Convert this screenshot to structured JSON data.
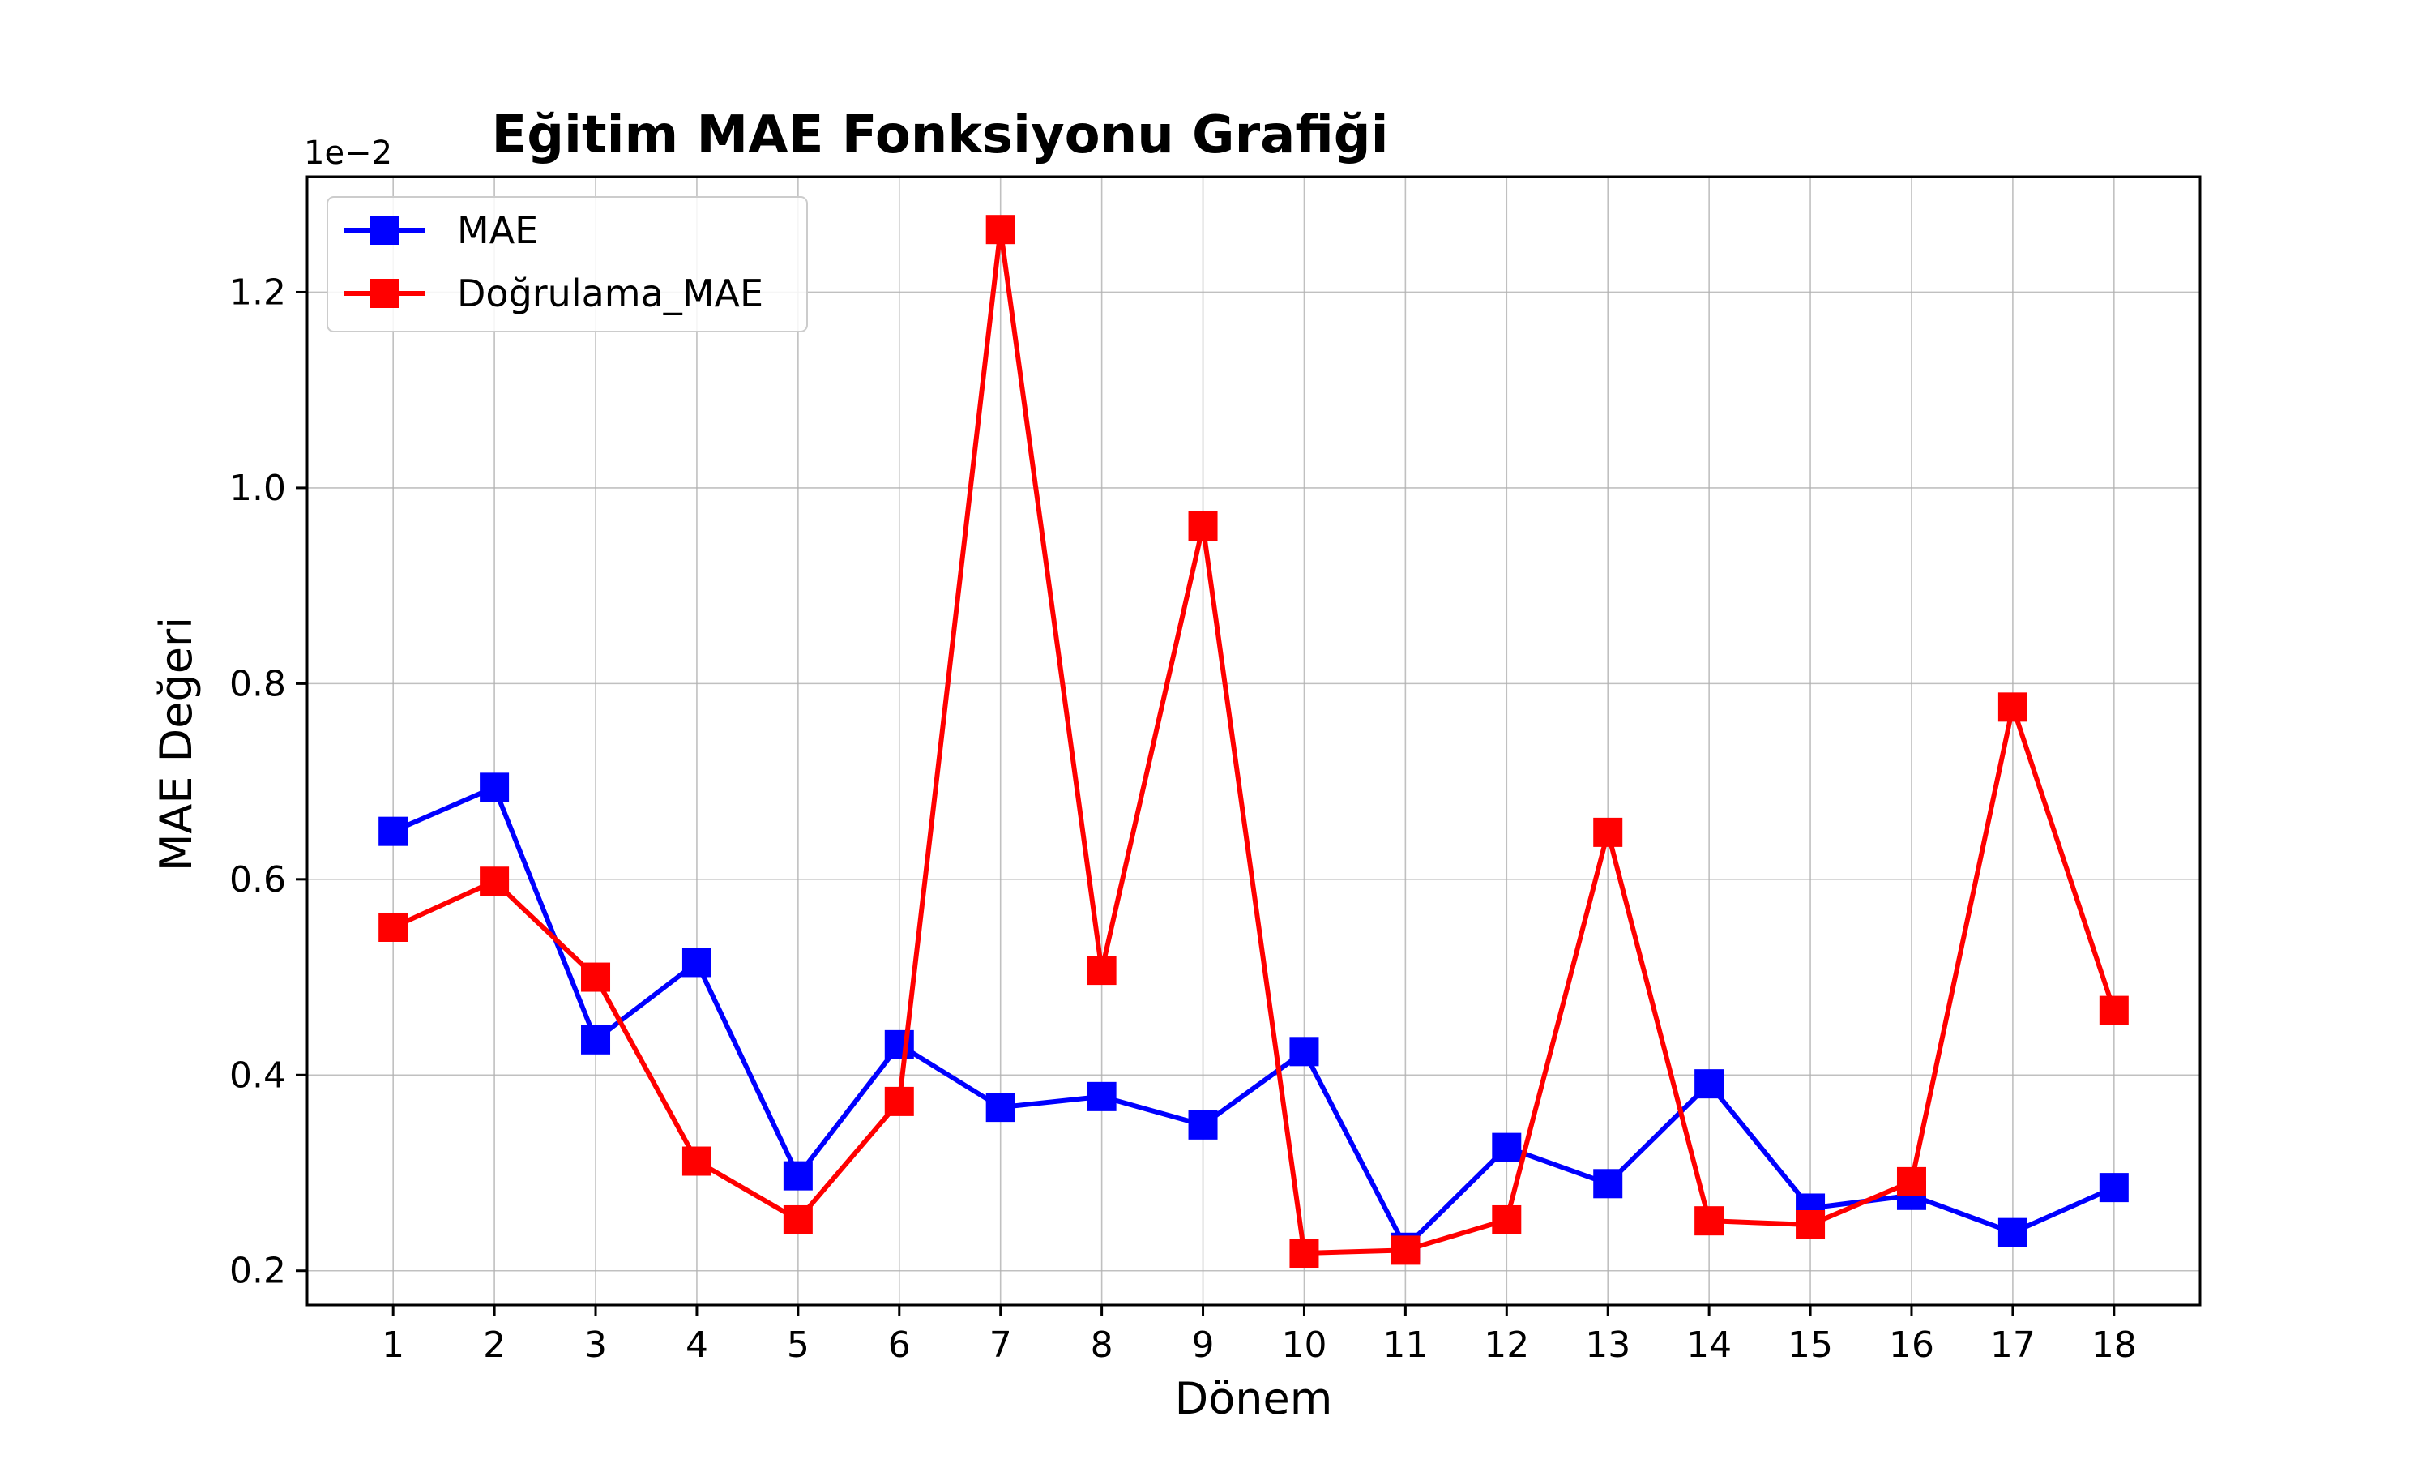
{
  "chart_data": {
    "type": "line",
    "title": "Eğitim MAE Fonksiyonu Grafiği",
    "xlabel": "Dönem",
    "ylabel": "MAE Değeri",
    "y_offset_label": "1e−2",
    "x": [
      1,
      2,
      3,
      4,
      5,
      6,
      7,
      8,
      9,
      10,
      11,
      12,
      13,
      14,
      15,
      16,
      17,
      18
    ],
    "xlim": [
      0.15,
      18.85
    ],
    "ylim": [
      0.165,
      1.318
    ],
    "yticks": [
      0.2,
      0.4,
      0.6,
      0.8,
      1.0,
      1.2
    ],
    "ytick_labels": [
      "0.2",
      "0.4",
      "0.6",
      "0.8",
      "1.0",
      "1.2"
    ],
    "grid": true,
    "legend_position": "top-left",
    "series": [
      {
        "name": "MAE",
        "color": "#0000ff",
        "marker": "square",
        "values": [
          0.649,
          0.694,
          0.436,
          0.515,
          0.297,
          0.431,
          0.367,
          0.378,
          0.349,
          0.424,
          0.224,
          0.326,
          0.289,
          0.391,
          0.264,
          0.277,
          0.239,
          0.285
        ]
      },
      {
        "name": "Doğrulama_MAE",
        "color": "#ff0000",
        "marker": "square",
        "values": [
          0.551,
          0.598,
          0.5,
          0.312,
          0.252,
          0.373,
          1.264,
          0.507,
          0.961,
          0.218,
          0.221,
          0.252,
          0.648,
          0.251,
          0.247,
          0.291,
          0.776,
          0.466
        ]
      }
    ]
  }
}
